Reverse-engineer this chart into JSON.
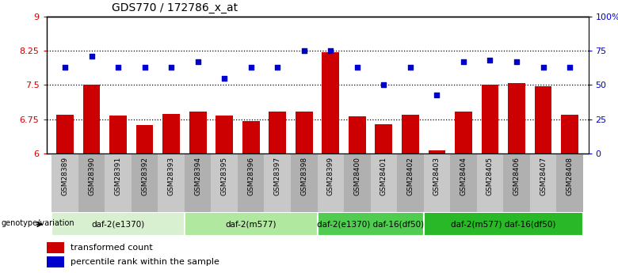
{
  "title": "GDS770 / 172786_x_at",
  "samples": [
    "GSM28389",
    "GSM28390",
    "GSM28391",
    "GSM28392",
    "GSM28393",
    "GSM28394",
    "GSM28395",
    "GSM28396",
    "GSM28397",
    "GSM28398",
    "GSM28399",
    "GSM28400",
    "GSM28401",
    "GSM28402",
    "GSM28403",
    "GSM28404",
    "GSM28405",
    "GSM28406",
    "GSM28407",
    "GSM28408"
  ],
  "bar_values": [
    6.85,
    7.5,
    6.84,
    6.62,
    6.87,
    6.92,
    6.84,
    6.72,
    6.92,
    6.92,
    8.22,
    6.82,
    6.65,
    6.85,
    6.08,
    6.92,
    7.5,
    7.55,
    7.47,
    6.85
  ],
  "dot_values": [
    63,
    71,
    63,
    63,
    63,
    67,
    55,
    63,
    63,
    75,
    75,
    63,
    50,
    63,
    43,
    67,
    68,
    67,
    63,
    63
  ],
  "bar_color": "#cc0000",
  "dot_color": "#0000cc",
  "ylim_left": [
    6.0,
    9.0
  ],
  "ylim_right": [
    0,
    100
  ],
  "yticks_left": [
    6.0,
    6.75,
    7.5,
    8.25,
    9.0
  ],
  "yticks_right": [
    0,
    25,
    50,
    75,
    100
  ],
  "ytick_labels_left": [
    "6",
    "6.75",
    "7.5",
    "8.25",
    "9"
  ],
  "ytick_labels_right": [
    "0",
    "25",
    "50",
    "75",
    "100%"
  ],
  "hlines": [
    6.75,
    7.5,
    8.25
  ],
  "groups": [
    {
      "label": "daf-2(e1370)",
      "start": 0,
      "end": 5,
      "color": "#d8f0d0"
    },
    {
      "label": "daf-2(m577)",
      "start": 5,
      "end": 10,
      "color": "#b0e8a0"
    },
    {
      "label": "daf-2(e1370) daf-16(df50)",
      "start": 10,
      "end": 14,
      "color": "#50cc50"
    },
    {
      "label": "daf-2(m577) daf-16(df50)",
      "start": 14,
      "end": 20,
      "color": "#28b828"
    }
  ],
  "legend_bar_label": "transformed count",
  "legend_dot_label": "percentile rank within the sample",
  "genotype_label": "genotype/variation"
}
